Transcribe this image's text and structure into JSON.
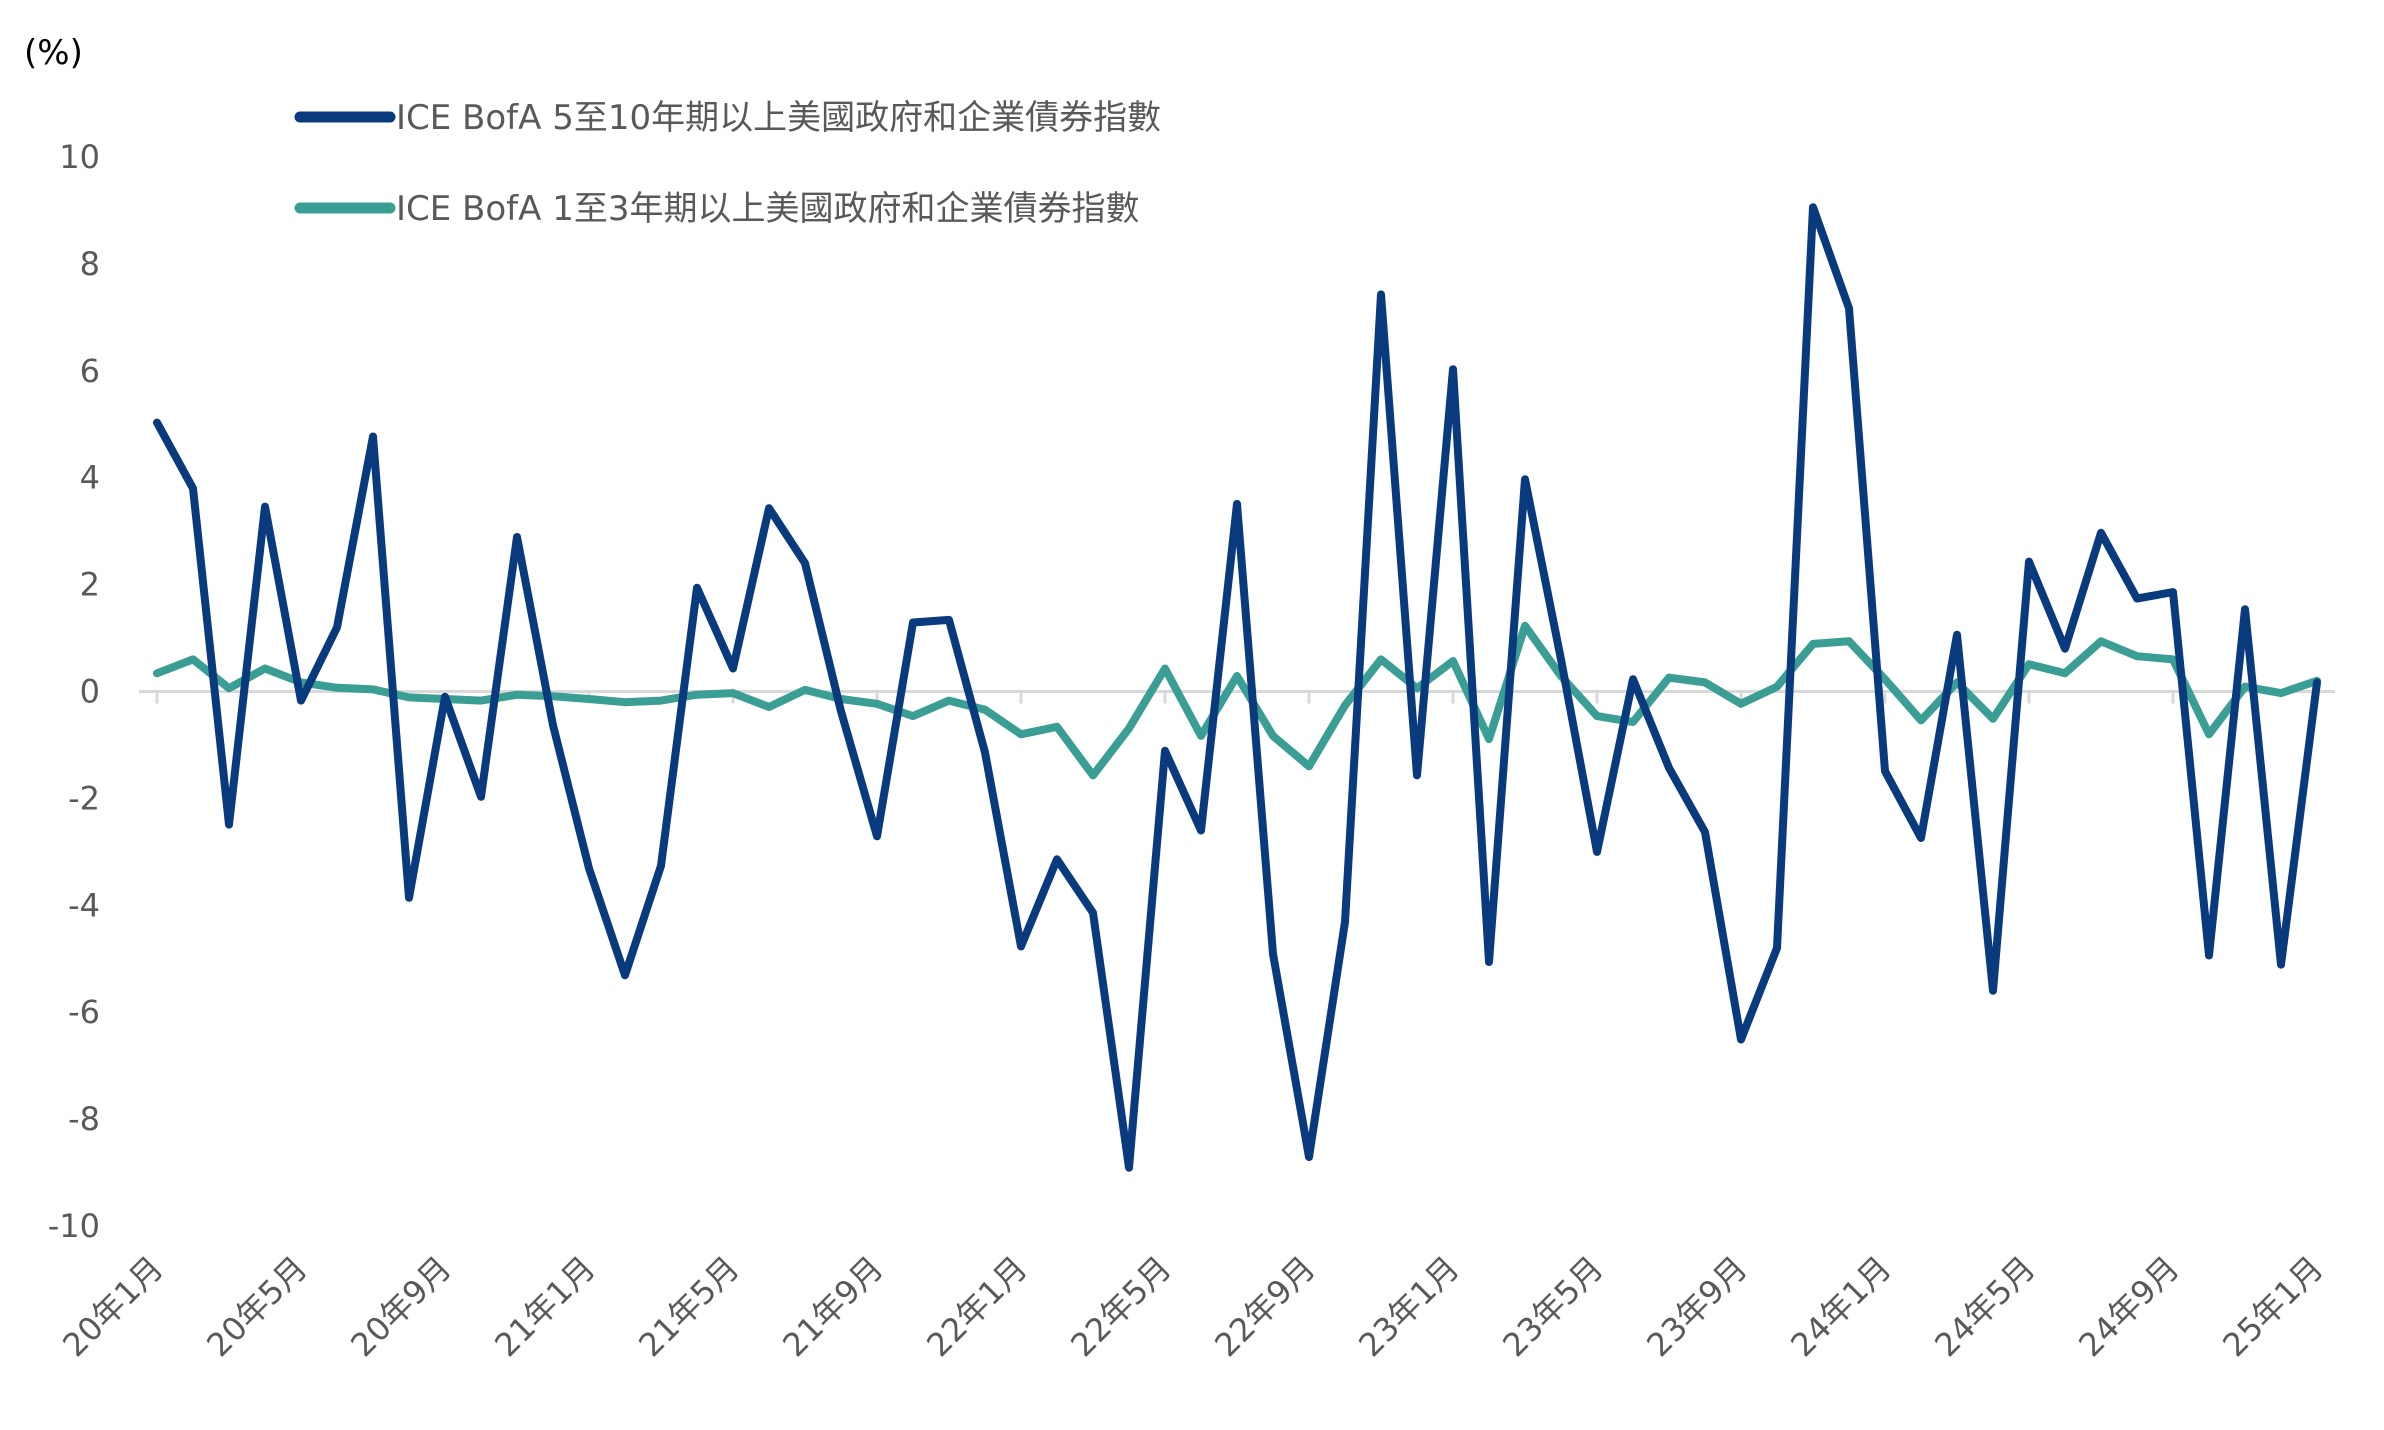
{
  "chart_data": {
    "type": "line",
    "title": "",
    "unit_label": "(%)",
    "xlabel": "",
    "ylabel": "",
    "ylim": [
      -10,
      10
    ],
    "yticks": [
      10,
      8,
      6,
      4,
      2,
      0,
      -2,
      -4,
      -6,
      -8,
      -10
    ],
    "grid": false,
    "legend_position": "top-left",
    "x": [
      "20年1月",
      "20年2月",
      "20年3月",
      "20年4月",
      "20年5月",
      "20年6月",
      "20年7月",
      "20年8月",
      "20年9月",
      "20年10月",
      "20年11月",
      "20年12月",
      "21年1月",
      "21年2月",
      "21年3月",
      "21年4月",
      "21年5月",
      "21年6月",
      "21年7月",
      "21年8月",
      "21年9月",
      "21年10月",
      "21年11月",
      "21年12月",
      "22年1月",
      "22年2月",
      "22年3月",
      "22年4月",
      "22年5月",
      "22年6月",
      "22年7月",
      "22年8月",
      "22年9月",
      "22年10月",
      "22年11月",
      "22年12月",
      "23年1月",
      "23年2月",
      "23年3月",
      "23年4月",
      "23年5月",
      "23年6月",
      "23年7月",
      "23年8月",
      "23年9月",
      "23年10月",
      "23年11月",
      "23年12月",
      "24年1月",
      "24年2月",
      "24年3月",
      "24年4月",
      "24年5月",
      "24年6月",
      "24年7月",
      "24年8月",
      "24年9月",
      "24年10月",
      "24年11月",
      "24年12月",
      "25年1月"
    ],
    "xtick_labels": [
      "20年1月",
      "20年5月",
      "20年9月",
      "21年1月",
      "21年5月",
      "21年9月",
      "22年1月",
      "22年5月",
      "22年9月",
      "23年1月",
      "23年5月",
      "23年9月",
      "24年1月",
      "24年5月",
      "24年9月",
      "25年1月"
    ],
    "series": [
      {
        "name": "ICE BofA 5至10年期以上美國政府和企業債券指數",
        "color": "#0a3a7e",
        "values": [
          5.03,
          3.8,
          -2.49,
          3.46,
          -0.17,
          1.2,
          4.77,
          -3.86,
          -0.1,
          -1.97,
          2.89,
          -0.63,
          -3.31,
          -5.31,
          -3.26,
          1.94,
          0.43,
          3.43,
          2.4,
          -0.37,
          -2.71,
          1.29,
          1.34,
          -1.14,
          -4.77,
          -3.14,
          -4.14,
          -8.91,
          -1.11,
          -2.6,
          3.51,
          -4.91,
          -8.71,
          -4.31,
          7.43,
          -1.57,
          6.03,
          -5.06,
          3.97,
          0.6,
          -3.0,
          0.23,
          -1.43,
          -2.63,
          -6.51,
          -4.8,
          9.06,
          7.17,
          -1.49,
          -2.74,
          1.06,
          -5.6,
          2.43,
          0.8,
          2.97,
          1.74,
          1.86,
          -4.94,
          1.54,
          -5.11,
          0.17
        ]
      },
      {
        "name": "ICE BofA 1至3年期以上美國政府和企業債券指數",
        "color": "#3a9e94",
        "values": [
          0.34,
          0.6,
          0.06,
          0.43,
          0.17,
          0.07,
          0.04,
          -0.11,
          -0.14,
          -0.17,
          -0.06,
          -0.09,
          -0.14,
          -0.2,
          -0.17,
          -0.06,
          -0.03,
          -0.29,
          0.03,
          -0.14,
          -0.23,
          -0.46,
          -0.17,
          -0.34,
          -0.8,
          -0.66,
          -1.57,
          -0.69,
          0.43,
          -0.83,
          0.29,
          -0.83,
          -1.4,
          -0.26,
          0.6,
          0.06,
          0.57,
          -0.89,
          1.23,
          0.29,
          -0.46,
          -0.57,
          0.26,
          0.17,
          -0.23,
          0.09,
          0.89,
          0.94,
          0.23,
          -0.54,
          0.17,
          -0.51,
          0.51,
          0.34,
          0.94,
          0.66,
          0.6,
          -0.8,
          0.09,
          -0.03,
          0.2
        ]
      }
    ]
  }
}
